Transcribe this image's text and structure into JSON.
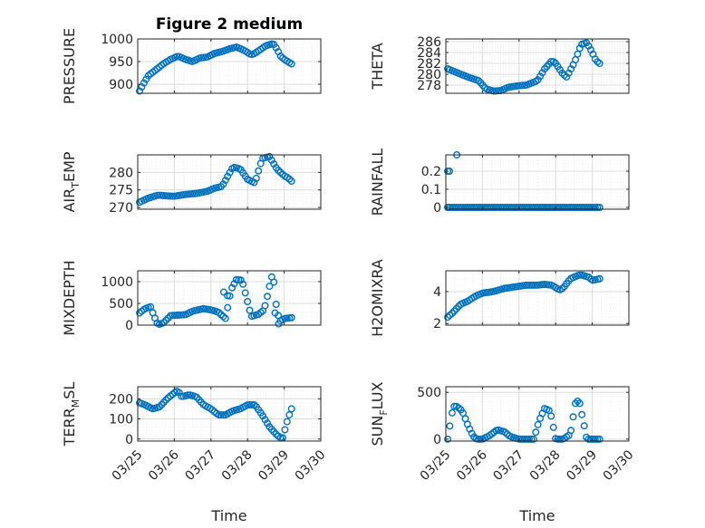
{
  "figure_title": "Figure 2 medium",
  "colors": {
    "marker": "#0072BD",
    "axis": "#262626",
    "grid_major": "#dcdcdc",
    "grid_minor": "#ececec"
  },
  "chart_data": [
    {
      "type": "scatter",
      "name": "pressure-axes",
      "title": "Figure 2 medium",
      "ylabel": {
        "main": "PRESSURE",
        "sub": ""
      },
      "xlabel": "",
      "xlim": [
        0,
        5
      ],
      "ylim": [
        880,
        1000
      ],
      "xticks": [
        0,
        1,
        2,
        3,
        4,
        5
      ],
      "xtick_labels": [],
      "yticks": [
        900,
        950,
        1000
      ],
      "ytick_labels": [
        "900",
        "950",
        "1000"
      ],
      "grid": true,
      "keys_x": [
        0.05,
        0.15,
        0.3,
        0.5,
        0.7,
        0.9,
        1.1,
        1.3,
        1.5,
        1.7,
        1.9,
        2.1,
        2.3,
        2.5,
        2.7,
        2.9,
        3.1,
        3.2,
        3.5,
        3.7,
        3.8,
        3.9,
        4.0,
        4.1,
        4.2
      ],
      "keys_y": [
        885,
        900,
        920,
        932,
        945,
        955,
        962,
        955,
        950,
        958,
        960,
        968,
        972,
        978,
        982,
        975,
        965,
        968,
        985,
        990,
        978,
        962,
        955,
        950,
        945
      ],
      "x_range": [
        0.05,
        4.2
      ],
      "n": 70
    },
    {
      "type": "scatter",
      "name": "theta-axes",
      "ylabel": {
        "main": "THETA",
        "sub": ""
      },
      "xlabel": "",
      "xlim": [
        0,
        5
      ],
      "ylim": [
        276.5,
        286.5
      ],
      "xticks": [
        0,
        1,
        2,
        3,
        4,
        5
      ],
      "xtick_labels": [],
      "yticks": [
        278,
        280,
        282,
        284,
        286
      ],
      "ytick_labels": [
        "278",
        "280",
        "282",
        "284",
        "286"
      ],
      "grid": true,
      "keys_x": [
        0.05,
        0.3,
        0.6,
        0.9,
        1.1,
        1.3,
        1.5,
        1.7,
        2.0,
        2.2,
        2.5,
        2.7,
        2.9,
        3.0,
        3.2,
        3.3,
        3.5,
        3.7,
        3.85,
        4.0,
        4.1,
        4.2
      ],
      "keys_y": [
        281.0,
        280.3,
        279.5,
        278.8,
        277.3,
        276.9,
        277.0,
        277.6,
        277.9,
        278.0,
        278.8,
        281.0,
        282.5,
        282.0,
        280.0,
        279.5,
        282.0,
        285.5,
        285.8,
        284.0,
        282.5,
        282.0
      ],
      "x_range": [
        0.05,
        4.2
      ],
      "n": 70
    },
    {
      "type": "scatter",
      "name": "air-temp-axes",
      "ylabel": {
        "main": "AIR",
        "sub": "T",
        "rest": "EMP"
      },
      "xlabel": "",
      "xlim": [
        0,
        5
      ],
      "ylim": [
        269.5,
        285
      ],
      "xticks": [
        0,
        1,
        2,
        3,
        4,
        5
      ],
      "xtick_labels": [],
      "yticks": [
        270,
        275,
        280
      ],
      "ytick_labels": [
        "270",
        "275",
        "280"
      ],
      "grid": true,
      "keys_x": [
        0.05,
        0.3,
        0.55,
        0.8,
        1.0,
        1.3,
        1.6,
        1.9,
        2.1,
        2.3,
        2.6,
        2.8,
        3.0,
        3.2,
        3.4,
        3.6,
        3.8,
        4.0,
        4.1,
        4.2
      ],
      "keys_y": [
        271.5,
        272.7,
        273.5,
        273.3,
        273.2,
        273.7,
        274.0,
        274.6,
        275.5,
        276.0,
        281.5,
        281.0,
        278.0,
        277.0,
        284.0,
        284.5,
        281.0,
        279.0,
        278.5,
        277.5
      ],
      "x_range": [
        0.05,
        4.2
      ],
      "n": 70
    },
    {
      "type": "scatter",
      "name": "rainfall-axes",
      "ylabel": {
        "main": "RAINFALL",
        "sub": ""
      },
      "xlabel": "",
      "xlim": [
        0,
        5
      ],
      "ylim": [
        -0.01,
        0.29
      ],
      "xticks": [
        0,
        1,
        2,
        3,
        4,
        5
      ],
      "xtick_labels": [],
      "yticks": [
        0,
        0.1,
        0.2
      ],
      "ytick_labels": [
        "0",
        "0.1",
        "0.2"
      ],
      "grid": true,
      "keys_x": [
        0.05,
        4.2
      ],
      "keys_y": [
        0,
        0
      ],
      "x_range": [
        0.05,
        4.2
      ],
      "n": 70,
      "extra_points": [
        [
          0.05,
          0.2
        ],
        [
          0.1,
          0.2
        ],
        [
          0.3,
          0.29
        ]
      ]
    },
    {
      "type": "scatter",
      "name": "mixdepth-axes",
      "ylabel": {
        "main": "MIXDEPTH",
        "sub": ""
      },
      "xlabel": "",
      "xlim": [
        0,
        5
      ],
      "ylim": [
        0,
        1250
      ],
      "xticks": [
        0,
        1,
        2,
        3,
        4,
        5
      ],
      "xtick_labels": [],
      "yticks": [
        0,
        500,
        1000
      ],
      "ytick_labels": [
        "0",
        "500",
        "1000"
      ],
      "grid": true,
      "keys_x": [
        0.05,
        0.2,
        0.35,
        0.45,
        0.55,
        0.7,
        0.9,
        1.1,
        1.3,
        1.5,
        1.8,
        2.0,
        2.2,
        2.4,
        2.5,
        2.55,
        2.7,
        2.85,
        3.1,
        3.3,
        3.45,
        3.55,
        3.65,
        3.7,
        3.8,
        3.9,
        4.0,
        4.2
      ],
      "keys_y": [
        280,
        380,
        420,
        200,
        10,
        50,
        220,
        230,
        240,
        320,
        380,
        350,
        300,
        150,
        600,
        820,
        1050,
        1030,
        200,
        250,
        350,
        700,
        1100,
        1150,
        300,
        100,
        150,
        170
      ],
      "x_range": [
        0.05,
        4.2
      ],
      "n": 70,
      "extra_points": [
        [
          2.35,
          760
        ],
        [
          2.45,
          680
        ],
        [
          3.75,
          280
        ],
        [
          3.85,
          30
        ]
      ]
    },
    {
      "type": "scatter",
      "name": "h2omixra-axes",
      "ylabel": {
        "main": "H2OMIXRA",
        "sub": ""
      },
      "xlabel": "",
      "xlim": [
        0,
        5
      ],
      "ylim": [
        1.9,
        5.3
      ],
      "xticks": [
        0,
        1,
        2,
        3,
        4,
        5
      ],
      "xtick_labels": [],
      "yticks": [
        2,
        4
      ],
      "ytick_labels": [
        "2",
        "4"
      ],
      "grid": true,
      "keys_x": [
        0.05,
        0.2,
        0.4,
        0.6,
        0.8,
        1.0,
        1.3,
        1.6,
        1.9,
        2.2,
        2.5,
        2.7,
        2.9,
        3.1,
        3.2,
        3.4,
        3.6,
        3.7,
        3.9,
        4.0,
        4.2
      ],
      "keys_y": [
        2.4,
        2.7,
        3.2,
        3.4,
        3.7,
        3.9,
        4.0,
        4.2,
        4.3,
        4.4,
        4.4,
        4.45,
        4.4,
        4.1,
        4.2,
        4.8,
        5.0,
        5.05,
        4.9,
        4.7,
        4.8
      ],
      "x_range": [
        0.05,
        4.2
      ],
      "n": 70
    },
    {
      "type": "scatter",
      "name": "terr-msl-axes",
      "ylabel": {
        "main": "TERR",
        "sub": "M",
        "rest": "SL"
      },
      "xlabel": "Time",
      "xlim": [
        0,
        5
      ],
      "ylim": [
        -10,
        260
      ],
      "xticks": [
        0,
        1,
        2,
        3,
        4,
        5
      ],
      "xtick_labels": [
        "03/25",
        "03/26",
        "03/27",
        "03/28",
        "03/29",
        "03/30"
      ],
      "yticks": [
        0,
        100,
        200
      ],
      "ytick_labels": [
        "0",
        "100",
        "200"
      ],
      "grid": true,
      "keys_x": [
        0.05,
        0.2,
        0.4,
        0.6,
        0.8,
        1.0,
        1.1,
        1.2,
        1.4,
        1.6,
        1.8,
        2.0,
        2.2,
        2.4,
        2.6,
        2.8,
        3.0,
        3.2,
        3.4,
        3.6,
        3.8,
        3.95,
        4.1,
        4.2
      ],
      "keys_y": [
        180,
        170,
        150,
        160,
        200,
        230,
        240,
        210,
        220,
        210,
        170,
        150,
        120,
        120,
        140,
        150,
        170,
        170,
        120,
        60,
        20,
        0,
        100,
        150
      ],
      "x_range": [
        0.05,
        4.2
      ],
      "n": 70
    },
    {
      "type": "scatter",
      "name": "sun-flux-axes",
      "ylabel": {
        "main": "SUN",
        "sub": "F",
        "rest": "LUX"
      },
      "xlabel": "Time",
      "xlim": [
        0,
        5
      ],
      "ylim": [
        -20,
        560
      ],
      "xticks": [
        0,
        1,
        2,
        3,
        4,
        5
      ],
      "xtick_labels": [
        "03/25",
        "03/26",
        "03/27",
        "03/28",
        "03/29",
        "03/30"
      ],
      "yticks": [
        0,
        500
      ],
      "ytick_labels": [
        "0",
        "500"
      ],
      "grid": true,
      "keys_x": [
        0.05,
        0.2,
        0.3,
        0.45,
        0.6,
        0.75,
        0.85,
        1.0,
        1.2,
        1.4,
        1.6,
        1.75,
        2.0,
        2.2,
        2.4,
        2.55,
        2.7,
        2.85,
        3.0,
        3.2,
        3.4,
        3.55,
        3.65,
        3.85,
        4.0,
        4.2
      ],
      "keys_y": [
        0,
        350,
        350,
        300,
        150,
        30,
        0,
        0,
        40,
        100,
        80,
        30,
        0,
        0,
        0,
        200,
        330,
        300,
        0,
        0,
        50,
        410,
        400,
        0,
        0,
        0
      ],
      "x_range": [
        0.05,
        4.2
      ],
      "n": 70
    }
  ]
}
